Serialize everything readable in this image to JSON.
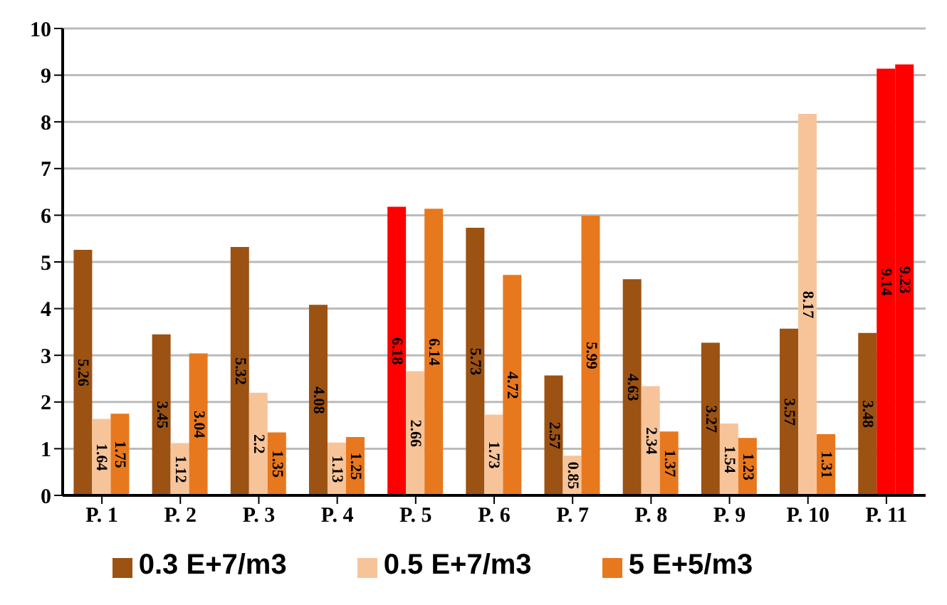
{
  "chart_data": {
    "type": "bar",
    "categories": [
      "P. 1",
      "P. 2",
      "P. 3",
      "P. 4",
      "P. 5",
      "P. 6",
      "P. 7",
      "P. 8",
      "P. 9",
      "P. 10",
      "P. 11"
    ],
    "series": [
      {
        "name": "0.3 E+7/m3",
        "color": "#9c5212",
        "colors": [
          "#9c5212",
          "#9c5212",
          "#9c5212",
          "#9c5212",
          "#ff0000",
          "#9c5212",
          "#9c5212",
          "#9c5212",
          "#9c5212",
          "#9c5212",
          "#9c5212"
        ],
        "values": [
          5.26,
          3.45,
          5.32,
          4.08,
          6.18,
          5.73,
          2.57,
          4.63,
          3.27,
          3.57,
          3.48
        ]
      },
      {
        "name": "0.5 E+7/m3",
        "color": "#f7c49a",
        "colors": [
          "#f7c49a",
          "#f7c49a",
          "#f7c49a",
          "#f7c49a",
          "#f7c49a",
          "#f7c49a",
          "#f7c49a",
          "#f7c49a",
          "#f7c49a",
          "#f7c49a",
          "#ff0000"
        ],
        "values": [
          1.64,
          1.12,
          2.2,
          1.13,
          2.66,
          1.73,
          0.85,
          2.34,
          1.54,
          8.17,
          9.14
        ]
      },
      {
        "name": "5 E+5/m3",
        "color": "#e8781e",
        "colors": [
          "#e8781e",
          "#e8781e",
          "#e8781e",
          "#e8781e",
          "#e8781e",
          "#e8781e",
          "#e8781e",
          "#e8781e",
          "#e8781e",
          "#e8781e",
          "#ff0000"
        ],
        "values": [
          1.75,
          3.04,
          1.35,
          1.25,
          6.14,
          4.72,
          5.99,
          1.37,
          1.23,
          1.31,
          9.23
        ]
      }
    ],
    "ylim": [
      0,
      10
    ],
    "yticks": [
      0,
      1,
      2,
      3,
      4,
      5,
      6,
      7,
      8,
      9,
      10
    ],
    "grid": "y",
    "legend": "bottom",
    "data_labels": true
  }
}
